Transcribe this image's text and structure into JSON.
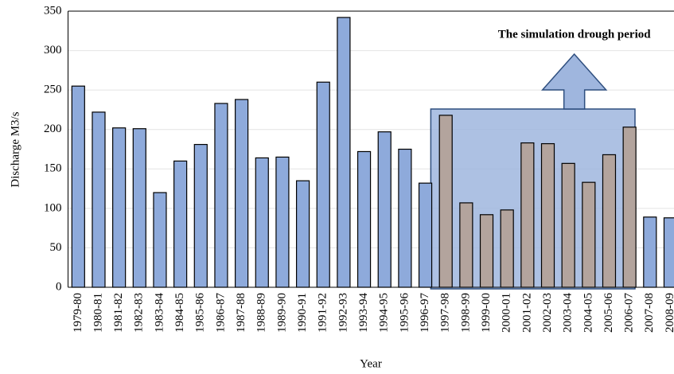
{
  "chart_data": {
    "type": "bar",
    "x_label": "Year",
    "y_label": "Discharge M3/s",
    "categories": [
      "1979-80",
      "1980-81",
      "1981-82",
      "1982-83",
      "1983-84",
      "1984-85",
      "1985-86",
      "1986-87",
      "1987-88",
      "1988-89",
      "1989-90",
      "1990-91",
      "1991-92",
      "1992-93",
      "1993-94",
      "1994-95",
      "1995-96",
      "1996-97",
      "1997-98",
      "1998-99",
      "1999-00",
      "2000-01",
      "2001-02",
      "2002-03",
      "2003-04",
      "2004-05",
      "2005-06",
      "2006-07",
      "2007-08",
      "2008-09"
    ],
    "values": [
      255,
      222,
      202,
      201,
      120,
      160,
      181,
      233,
      238,
      164,
      165,
      135,
      260,
      342,
      172,
      197,
      175,
      132,
      218,
      107,
      92,
      98,
      183,
      182,
      157,
      133,
      168,
      203,
      89,
      88
    ],
    "color": "#8eaadb",
    "highlight": {
      "label": "The simulation drough period",
      "from": "1997-98",
      "to": "2006-07",
      "color": "#b3a49d",
      "box_color": "#9fb6de"
    },
    "ylim": [
      0,
      350
    ],
    "yticks": [
      0,
      50,
      100,
      150,
      200,
      250,
      300,
      350
    ],
    "grid": true
  }
}
